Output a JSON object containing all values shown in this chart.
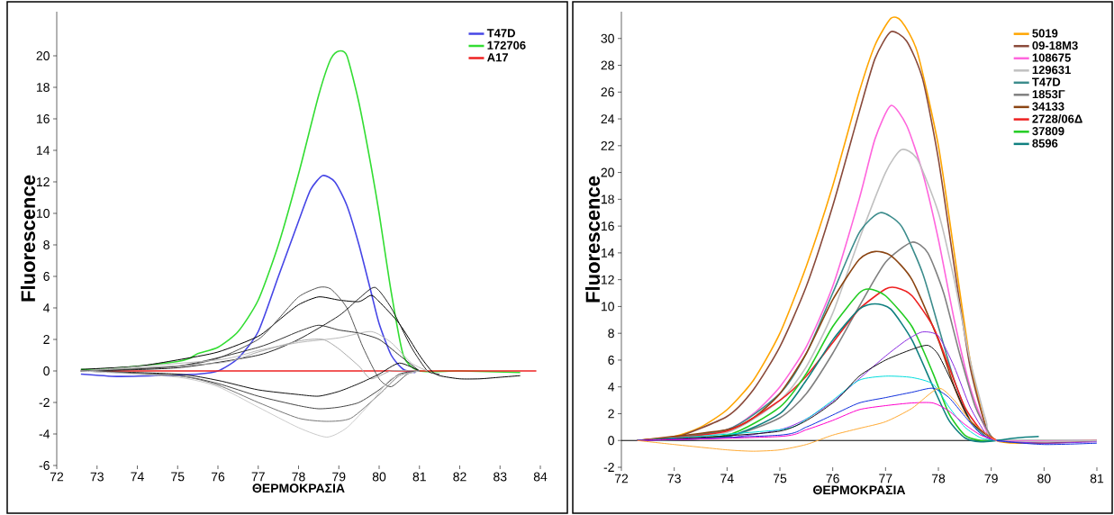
{
  "chart_data": [
    {
      "type": "line",
      "xlabel": "ΘΕΡΜΟΚΡΑΣΙΑ",
      "ylabel": "Fluorescence",
      "xlim": [
        72,
        84
      ],
      "ylim": [
        -6,
        22.8
      ],
      "xticks": [
        72,
        73,
        74,
        75,
        76,
        77,
        78,
        79,
        80,
        81,
        82,
        83,
        84
      ],
      "yticks": [
        -6,
        -4,
        -2,
        0,
        2,
        4,
        6,
        8,
        10,
        12,
        14,
        16,
        18,
        20
      ],
      "legend": "top right",
      "series": [
        {
          "x": [
            72.6,
            73.5,
            74.5,
            75.5,
            76,
            76.5,
            77,
            77.5,
            78,
            78.3,
            78.6,
            78.9,
            79.2,
            79.5,
            79.8,
            80,
            80.3,
            80.6,
            80.9
          ],
          "values": [
            -0.2,
            -0.35,
            -0.3,
            -0.2,
            0,
            0.8,
            2.5,
            6,
            9.5,
            11.5,
            12.4,
            12,
            10.5,
            8,
            5,
            3,
            1,
            0.1,
            -0.1
          ],
          "name": "T47D",
          "color": "#4646e6"
        },
        {
          "x": [
            72.6,
            73,
            74,
            75,
            75.3,
            75.5,
            76,
            76.5,
            77,
            77.5,
            78,
            78.5,
            78.8,
            79,
            79.2,
            79.5,
            79.8,
            80,
            80.3,
            80.6,
            81,
            82,
            83.5
          ],
          "values": [
            0.1,
            0.1,
            0.3,
            0.6,
            0.8,
            1.1,
            1.5,
            2.5,
            4.5,
            8,
            12.5,
            17.5,
            19.8,
            20.3,
            20,
            17,
            13,
            10,
            5,
            1,
            0,
            0,
            -0.1
          ],
          "name": "172706",
          "color": "#33dd33"
        },
        {
          "x": [
            72.6,
            83.9
          ],
          "values": [
            0,
            0
          ],
          "name": "A17",
          "color": "#ee2222"
        },
        {
          "x": [
            72.6,
            74,
            75,
            76,
            77,
            77.5,
            78,
            78.5,
            79,
            79.5,
            79.8,
            80,
            80.5,
            81,
            81.3,
            81.5,
            82,
            82.5,
            83,
            83.5
          ],
          "values": [
            0.1,
            0.3,
            0.7,
            1.2,
            2.2,
            3.2,
            4.2,
            4.7,
            4.5,
            4.4,
            4.8,
            4.4,
            3,
            1,
            0,
            -0.3,
            -0.5,
            -0.5,
            -0.4,
            -0.3
          ],
          "color": "#000000"
        },
        {
          "x": [
            72.6,
            75,
            76,
            77,
            77.5,
            78,
            78.5,
            78.8,
            79.2,
            79.6,
            80,
            80.3,
            80.7,
            81
          ],
          "values": [
            0,
            0.3,
            0.8,
            2,
            3.3,
            4.7,
            5.3,
            5.2,
            4,
            1.5,
            -0.5,
            -1,
            -0.2,
            0
          ],
          "color": "#555555"
        },
        {
          "x": [
            72.6,
            75,
            77,
            78,
            79,
            79.5,
            79.9,
            80.3,
            80.8,
            81.2,
            81.5
          ],
          "values": [
            0,
            0.2,
            1,
            2,
            3.5,
            4.6,
            5.3,
            4,
            1.5,
            0,
            -0.2
          ],
          "color": "#222222"
        },
        {
          "x": [
            72.6,
            75,
            77,
            78,
            78.5,
            79,
            79.5,
            80,
            80.5,
            81
          ],
          "values": [
            0,
            0.3,
            1.5,
            2.5,
            2.9,
            2.6,
            2.4,
            2,
            1,
            0
          ],
          "color": "#333333"
        },
        {
          "x": [
            72.6,
            76,
            77,
            78,
            79,
            79.8,
            80.3,
            80.8,
            81.2
          ],
          "values": [
            0,
            0.7,
            1.3,
            1.8,
            2.1,
            2.5,
            1.8,
            0.5,
            0
          ],
          "color": "#bbbbbb"
        },
        {
          "x": [
            72.6,
            76,
            77,
            78,
            78.6,
            79,
            79.5,
            79.8,
            80.3,
            81
          ],
          "values": [
            0,
            0.5,
            1.2,
            1.9,
            2,
            1.4,
            0.3,
            -0.5,
            0,
            0
          ],
          "color": "#aaaaaa"
        },
        {
          "x": [
            72.6,
            75,
            76,
            77,
            78,
            78.5,
            79,
            79.5,
            80,
            80.5,
            81
          ],
          "values": [
            0,
            -0.2,
            -0.6,
            -1.2,
            -1.5,
            -1.6,
            -1.3,
            -0.8,
            -0.2,
            0.5,
            0
          ],
          "color": "#111111"
        },
        {
          "x": [
            72.6,
            75,
            76,
            77,
            78,
            78.5,
            79,
            79.5,
            80,
            80.5,
            81
          ],
          "values": [
            0,
            -0.3,
            -0.8,
            -1.6,
            -2.2,
            -2.4,
            -2.3,
            -2,
            -1.2,
            -0.2,
            0
          ],
          "color": "#444444"
        },
        {
          "x": [
            72.6,
            75,
            76,
            77,
            78,
            78.7,
            79.3,
            80,
            80.5,
            81
          ],
          "values": [
            0,
            -0.3,
            -0.9,
            -2,
            -3,
            -3.2,
            -3,
            -1.5,
            -0.3,
            0
          ],
          "color": "#777777"
        },
        {
          "x": [
            72.6,
            75,
            76,
            77,
            78,
            78.7,
            79.2,
            79.8,
            80.3,
            81
          ],
          "values": [
            0,
            -0.4,
            -1,
            -2.3,
            -3.6,
            -4.2,
            -3.6,
            -2,
            -0.5,
            0
          ],
          "color": "#cccccc"
        }
      ]
    },
    {
      "type": "line",
      "xlabel": "ΘΕΡΜΟΚΡΑΣΙΑ",
      "ylabel": "Fluorescence",
      "xlim": [
        72,
        81
      ],
      "ylim": [
        -2,
        32
      ],
      "xticks": [
        72,
        73,
        74,
        75,
        76,
        77,
        78,
        79,
        80,
        81
      ],
      "yticks": [
        -2,
        0,
        2,
        4,
        6,
        8,
        10,
        12,
        14,
        16,
        18,
        20,
        22,
        24,
        26,
        28,
        30
      ],
      "legend": "top right",
      "ref_lines": [
        {
          "axis": "y",
          "value": 0,
          "color": "#000000"
        }
      ],
      "series": [
        {
          "x": [
            72.3,
            73,
            73.5,
            74,
            74.5,
            75,
            75.5,
            76,
            76.5,
            76.8,
            77.1,
            77.3,
            77.6,
            78,
            78.3,
            78.6,
            78.9,
            79.1,
            79.5,
            80,
            81
          ],
          "values": [
            0,
            0.3,
            1,
            2.3,
            4.5,
            8,
            13,
            19,
            26,
            29.5,
            31.5,
            31.3,
            29,
            22,
            14,
            6,
            1,
            0,
            -0.2,
            -0.1,
            0
          ],
          "name": "5019",
          "color": "#ffa500"
        },
        {
          "x": [
            72.3,
            73,
            74,
            74.5,
            75,
            75.5,
            76,
            76.5,
            76.8,
            77.1,
            77.4,
            77.7,
            78,
            78.3,
            78.6,
            78.9,
            79.1,
            80,
            81
          ],
          "values": [
            0,
            0.2,
            1.8,
            3.8,
            7,
            11.5,
            17.5,
            24.5,
            28.5,
            30.5,
            29.8,
            27,
            21,
            13,
            5.5,
            1,
            0,
            -0.2,
            0
          ],
          "name": "09-18M3",
          "color": "#8a4a3a"
        },
        {
          "x": [
            72.3,
            73,
            74,
            74.5,
            75,
            75.5,
            76,
            76.5,
            76.8,
            77.1,
            77.4,
            77.7,
            78,
            78.3,
            78.6,
            78.9,
            79.1,
            81
          ],
          "values": [
            0,
            0.1,
            0.8,
            2,
            4,
            7,
            11.5,
            18,
            22.5,
            25,
            23.5,
            20,
            15,
            9,
            4,
            0.8,
            0,
            0
          ],
          "name": "108675",
          "color": "#ff66dd"
        },
        {
          "x": [
            72.3,
            74,
            75,
            75.5,
            76,
            76.5,
            77,
            77.3,
            77.6,
            78,
            78.3,
            78.6,
            78.9,
            79.1,
            81
          ],
          "values": [
            0,
            0.6,
            3,
            5.5,
            9.5,
            15,
            20,
            21.7,
            21,
            17,
            12,
            6,
            1.5,
            0,
            0
          ],
          "name": "129631",
          "color": "#c0c0c0"
        },
        {
          "x": [
            72.3,
            74,
            75,
            75.5,
            76,
            76.5,
            76.9,
            77.3,
            77.7,
            78,
            78.3,
            78.6,
            78.9,
            79.1
          ],
          "values": [
            0,
            0.8,
            3.5,
            6.5,
            11,
            15.5,
            17,
            16,
            12.5,
            8.5,
            4.5,
            1.5,
            0.3,
            0
          ],
          "name": "T47D",
          "color": "#3c8c8c"
        },
        {
          "x": [
            72.3,
            74,
            75,
            75.5,
            76,
            76.5,
            77,
            77.5,
            77.8,
            78.1,
            78.4,
            78.7,
            79,
            79.1
          ],
          "values": [
            0,
            0.3,
            1.7,
            3.5,
            6.5,
            10,
            13.3,
            14.8,
            14,
            11,
            6.5,
            2.5,
            0.3,
            0
          ],
          "name": "1853Γ",
          "color": "#808080"
        },
        {
          "x": [
            72.3,
            74,
            74.5,
            75,
            75.5,
            76,
            76.5,
            76.8,
            77.1,
            77.5,
            78,
            78.3,
            78.6,
            79
          ],
          "values": [
            0,
            0.8,
            1.7,
            3.5,
            6.5,
            10.5,
            13.5,
            14.1,
            13.8,
            12,
            7.5,
            4,
            1.5,
            0.2
          ],
          "name": "34133",
          "color": "#8b4513"
        },
        {
          "x": [
            72.3,
            74,
            75,
            75.5,
            76,
            76.5,
            77,
            77.2,
            77.5,
            77.9,
            78.2,
            78.5,
            78.8,
            79.1
          ],
          "values": [
            0,
            0.7,
            3,
            4.8,
            7.3,
            9.8,
            11.3,
            11.4,
            10.8,
            8.5,
            5.5,
            2.5,
            0.8,
            0
          ],
          "name": "2728/06Δ",
          "color": "#ee2020"
        },
        {
          "x": [
            72.3,
            74,
            75,
            75.5,
            76,
            76.5,
            76.7,
            77,
            77.5,
            77.9,
            78.2,
            78.5,
            78.8,
            79.1
          ],
          "values": [
            0,
            0.4,
            2.5,
            5,
            8.5,
            11,
            11.3,
            10.8,
            8.5,
            5,
            2,
            0.4,
            0,
            0
          ],
          "name": "37809",
          "color": "#22cc22"
        },
        {
          "x": [
            72.3,
            74,
            75,
            75.5,
            76,
            76.5,
            76.8,
            77.1,
            77.5,
            77.9,
            78.2,
            78.5,
            78.8,
            79.1,
            79.5,
            79.9
          ],
          "values": [
            0,
            0.3,
            2,
            4.5,
            7.5,
            9.8,
            10.2,
            9.8,
            7.5,
            4,
            1.5,
            0.2,
            -0.1,
            0,
            0.2,
            0.3
          ],
          "name": "8596",
          "color": "#108080"
        },
        {
          "x": [
            72.3,
            74,
            75,
            75.5,
            76,
            76.5,
            77,
            77.4,
            77.7,
            78,
            78.3,
            78.6,
            78.9,
            79.1,
            80,
            81
          ],
          "values": [
            0,
            0.2,
            0.8,
            1.6,
            2.9,
            4.6,
            6.3,
            7.5,
            8.1,
            7.8,
            5.5,
            2.5,
            0.5,
            0,
            -0.2,
            -0.1
          ],
          "color": "#8a2be2"
        },
        {
          "x": [
            72.3,
            75,
            75.5,
            76,
            76.5,
            77,
            77.5,
            77.9,
            78.2,
            78.5,
            78.8,
            79.1
          ],
          "values": [
            0,
            0.8,
            1.6,
            3,
            4.5,
            4.8,
            4.7,
            4.2,
            2.5,
            1,
            0.2,
            0
          ],
          "color": "#00dddd"
        },
        {
          "x": [
            72.3,
            75,
            76,
            76.5,
            77,
            77.5,
            77.8,
            78,
            78.3,
            78.6,
            79
          ],
          "values": [
            0,
            0.7,
            2.8,
            4.8,
            6,
            6.8,
            7.1,
            6.4,
            4,
            1.5,
            0.2
          ],
          "color": "#111111"
        },
        {
          "x": [
            72.3,
            75,
            75.5,
            76,
            76.5,
            77,
            77.5,
            77.9,
            78.2,
            78.5,
            78.8,
            79.1,
            80,
            81
          ],
          "values": [
            0,
            0.4,
            1,
            1.9,
            2.8,
            3.2,
            3.6,
            3.9,
            3.2,
            1.8,
            0.5,
            0,
            -0.3,
            -0.2
          ],
          "color": "#1030dd"
        },
        {
          "x": [
            72.3,
            75,
            75.5,
            76,
            76.5,
            77,
            77.5,
            77.9,
            78.2,
            78.5,
            78.8,
            79.1
          ],
          "values": [
            0,
            0.3,
            0.8,
            1.5,
            2.3,
            2.6,
            2.8,
            2.8,
            2.2,
            1.2,
            0.4,
            0
          ],
          "color": "#ff00cc"
        },
        {
          "x": [
            72.3,
            73,
            74,
            74.5,
            75,
            75.5,
            76,
            76.5,
            77,
            77.5,
            78,
            78.3,
            78.6,
            79,
            79.1
          ],
          "values": [
            0,
            -0.3,
            -0.7,
            -0.8,
            -0.7,
            -0.3,
            0.4,
            0.9,
            1.4,
            2.4,
            3.9,
            3,
            1.5,
            0.2,
            0
          ],
          "color": "#ffaa33"
        }
      ]
    }
  ]
}
